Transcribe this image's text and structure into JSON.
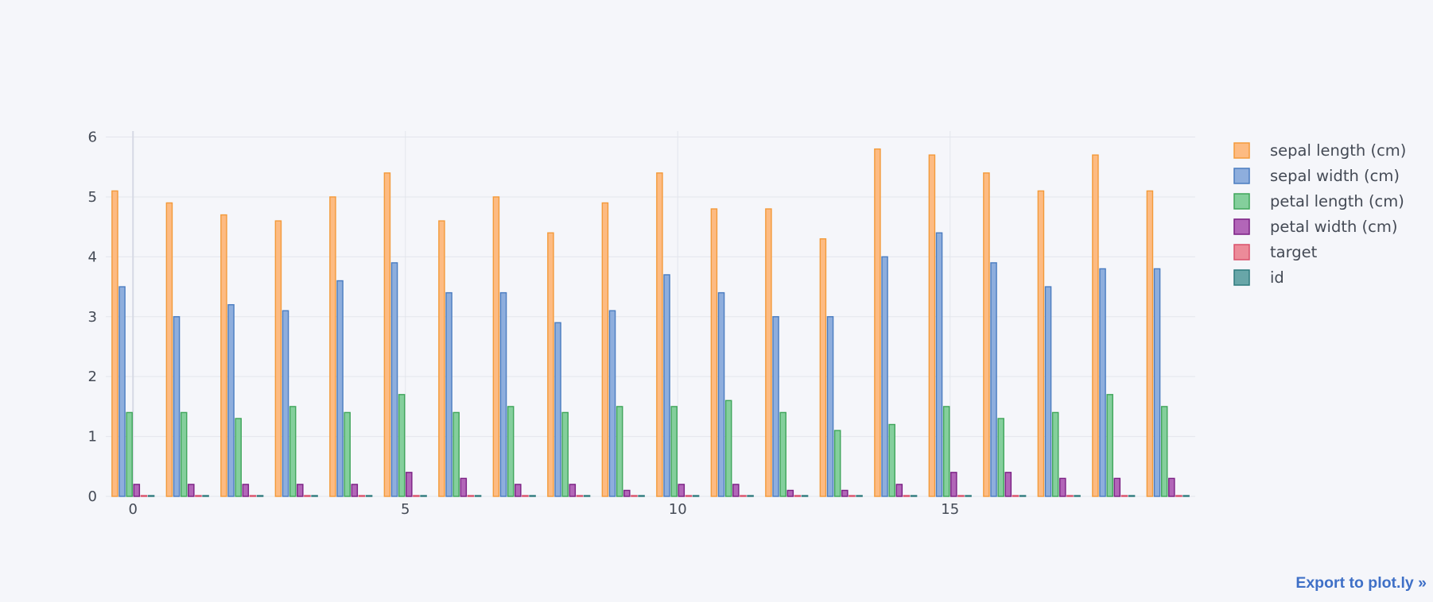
{
  "chart_data": {
    "type": "bar",
    "title": "",
    "xlabel": "",
    "ylabel": "",
    "x": [
      0,
      1,
      2,
      3,
      4,
      5,
      6,
      7,
      8,
      9,
      10,
      11,
      12,
      13,
      14,
      15,
      16,
      17,
      18,
      19
    ],
    "xticks": [
      0,
      5,
      10,
      15
    ],
    "xlim": [
      -0.5,
      19.5
    ],
    "ylim": [
      0,
      6.1
    ],
    "yticks": [
      0,
      1,
      2,
      3,
      4,
      5,
      6
    ],
    "grid": true,
    "legend_position": "right",
    "series": [
      {
        "name": "sepal length (cm)",
        "fill": "#fdbb82",
        "stroke": "#f39a3a",
        "values": [
          5.1,
          4.9,
          4.7,
          4.6,
          5.0,
          5.4,
          4.6,
          5.0,
          4.4,
          4.9,
          5.4,
          4.8,
          4.8,
          4.3,
          5.8,
          5.7,
          5.4,
          5.1,
          5.7,
          5.1
        ]
      },
      {
        "name": "sepal width (cm)",
        "fill": "#8eaedd",
        "stroke": "#4a7cc0",
        "values": [
          3.5,
          3.0,
          3.2,
          3.1,
          3.6,
          3.9,
          3.4,
          3.4,
          2.9,
          3.1,
          3.7,
          3.4,
          3.0,
          3.0,
          4.0,
          4.4,
          3.9,
          3.5,
          3.8,
          3.8
        ]
      },
      {
        "name": "petal length (cm)",
        "fill": "#84cf9c",
        "stroke": "#3fa55a",
        "values": [
          1.4,
          1.4,
          1.3,
          1.5,
          1.4,
          1.7,
          1.4,
          1.5,
          1.4,
          1.5,
          1.5,
          1.6,
          1.4,
          1.1,
          1.2,
          1.5,
          1.3,
          1.4,
          1.7,
          1.5
        ]
      },
      {
        "name": "petal width (cm)",
        "fill": "#b266b8",
        "stroke": "#7a1f83",
        "values": [
          0.2,
          0.2,
          0.2,
          0.2,
          0.2,
          0.4,
          0.3,
          0.2,
          0.2,
          0.1,
          0.2,
          0.2,
          0.1,
          0.1,
          0.2,
          0.4,
          0.4,
          0.3,
          0.3,
          0.3
        ]
      },
      {
        "name": "target",
        "fill": "#ec8b99",
        "stroke": "#d9506a",
        "values": [
          0,
          0,
          0,
          0,
          0,
          0,
          0,
          0,
          0,
          0,
          0,
          0,
          0,
          0,
          0,
          0,
          0,
          0,
          0,
          0
        ]
      },
      {
        "name": "id",
        "fill": "#68a6a8",
        "stroke": "#2e7a7d",
        "values": [
          0,
          0,
          0,
          0,
          0,
          0,
          0,
          0,
          0,
          0,
          0,
          0,
          0,
          0,
          0,
          0,
          0,
          0,
          0,
          0
        ]
      }
    ]
  },
  "export_link": "Export to plot.ly »"
}
